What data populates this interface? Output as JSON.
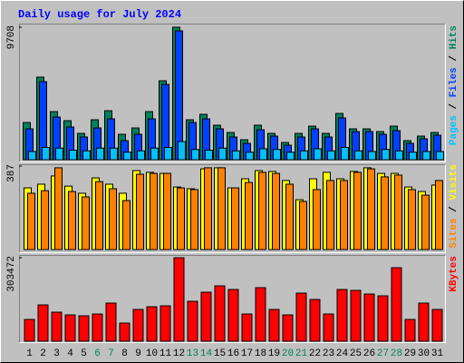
{
  "chart_data": [
    {
      "type": "bar",
      "title": "Daily usage for July 2024",
      "series": [
        {
          "name": "Hits",
          "color": "#00805c",
          "values": [
            2726,
            6051,
            3524,
            2859,
            1928,
            2926,
            3591,
            1862,
            2327,
            3524,
            5785,
            9708,
            2926,
            3325,
            2527,
            1995,
            1463,
            2527,
            1928,
            1263,
            1928,
            2460,
            1928,
            3391,
            2261,
            2261,
            2061,
            2460,
            1396,
            1729,
            1995
          ]
        },
        {
          "name": "Files",
          "color": "#0040ff",
          "values": [
            2261,
            5718,
            3125,
            2394,
            1662,
            2327,
            2992,
            1396,
            1862,
            2992,
            5519,
            9442,
            2726,
            2992,
            2261,
            1662,
            1197,
            2194,
            1729,
            1064,
            1662,
            2261,
            1662,
            3059,
            2061,
            2061,
            1862,
            2128,
            1197,
            1529,
            1795
          ]
        },
        {
          "name": "Pages",
          "color": "#00c0ff",
          "values": [
            600,
            900,
            850,
            700,
            650,
            850,
            850,
            550,
            650,
            850,
            900,
            1330,
            750,
            700,
            850,
            650,
            550,
            800,
            750,
            550,
            650,
            800,
            650,
            900,
            650,
            600,
            750,
            650,
            550,
            600,
            600
          ]
        }
      ],
      "ylim": [
        0,
        9708
      ],
      "yticks": [
        9708
      ],
      "legend_separator": " / "
    },
    {
      "type": "bar",
      "series": [
        {
          "name": "Visits",
          "color": "#ffff00",
          "values": [
            286,
            303,
            341,
            294,
            261,
            332,
            303,
            261,
            366,
            358,
            353,
            290,
            282,
            374,
            379,
            286,
            328,
            366,
            362,
            320,
            231,
            328,
            358,
            328,
            362,
            379,
            353,
            353,
            290,
            269,
            299
          ]
        },
        {
          "name": "Sites",
          "color": "#ff8000",
          "values": [
            261,
            273,
            379,
            269,
            244,
            315,
            282,
            227,
            349,
            353,
            353,
            286,
            278,
            379,
            379,
            286,
            311,
            358,
            353,
            303,
            223,
            278,
            320,
            320,
            358,
            374,
            337,
            345,
            278,
            252,
            320
          ]
        }
      ],
      "ylim": [
        0,
        387
      ],
      "yticks": [
        387
      ],
      "legend_separator": " / "
    },
    {
      "type": "bar",
      "series": [
        {
          "name": "KBytes",
          "color": "#ff0000",
          "values": [
            79167,
            131944,
            105555,
            95660,
            92361,
            98958,
            138541,
            65972,
            115451,
            125347,
            128646,
            303472,
            145138,
            178124,
            201215,
            188020,
            98958,
            194617,
            115451,
            95660,
            174826,
            151736,
            98958,
            188020,
            184722,
            171527,
            164930,
            267190,
            79167,
            138541,
            115451
          ]
        }
      ],
      "ylim": [
        0,
        303472
      ],
      "yticks": [
        303472
      ],
      "legend_separator": " / ",
      "categories": [
        "1",
        "2",
        "3",
        "4",
        "5",
        "6",
        "7",
        "8",
        "9",
        "10",
        "11",
        "12",
        "13",
        "14",
        "15",
        "16",
        "17",
        "18",
        "19",
        "20",
        "21",
        "22",
        "23",
        "24",
        "25",
        "26",
        "27",
        "28",
        "29",
        "30",
        "31"
      ],
      "category_colors": [
        "#000000",
        "#000000",
        "#000000",
        "#000000",
        "#000000",
        "#00805c",
        "#00805c",
        "#000000",
        "#000000",
        "#000000",
        "#000000",
        "#000000",
        "#00805c",
        "#00805c",
        "#000000",
        "#000000",
        "#000000",
        "#000000",
        "#000000",
        "#00805c",
        "#00805c",
        "#000000",
        "#000000",
        "#000000",
        "#000000",
        "#000000",
        "#00805c",
        "#00805c",
        "#000000",
        "#000000",
        "#000000"
      ]
    }
  ]
}
